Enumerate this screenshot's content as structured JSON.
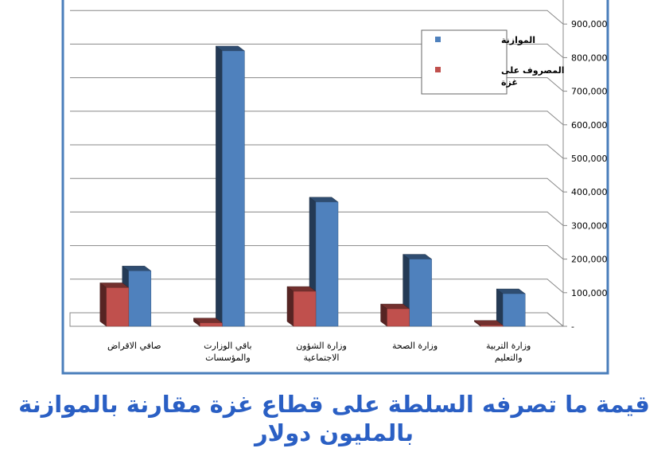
{
  "chart_data": {
    "type": "bar3d",
    "title": "قيمة ما تصرفه السلطة على قطاع غزة مقارنة بالموازنة بالمليون دولار",
    "categories": [
      "صافي الاقراض",
      "باقي الوزارت\nوالمؤسسات",
      "وزارة الشؤون\nالاجتماعية",
      "وزارة الصحة",
      "وزارة التربية\nوالتعليم"
    ],
    "series": [
      {
        "name": "الموازنة",
        "color": "#4f81bd",
        "values": [
          165000,
          820000,
          370000,
          200000,
          97000
        ]
      },
      {
        "name": "المصروف على\nغزة",
        "color": "#c0504d",
        "values": [
          115000,
          10000,
          104000,
          52000,
          3000
        ]
      }
    ],
    "ylim": [
      0,
      1000000
    ],
    "yticks": [
      {
        "value": 0,
        "label": "-"
      },
      {
        "value": 100000,
        "label": "100,000"
      },
      {
        "value": 200000,
        "label": "200,000"
      },
      {
        "value": 300000,
        "label": "300,000"
      },
      {
        "value": 400000,
        "label": "400,000"
      },
      {
        "value": 500000,
        "label": "500,000"
      },
      {
        "value": 600000,
        "label": "600,000"
      },
      {
        "value": 700000,
        "label": "700,000"
      },
      {
        "value": 800000,
        "label": "800,000"
      },
      {
        "value": 900000,
        "label": "900,000"
      }
    ],
    "grid": true
  }
}
